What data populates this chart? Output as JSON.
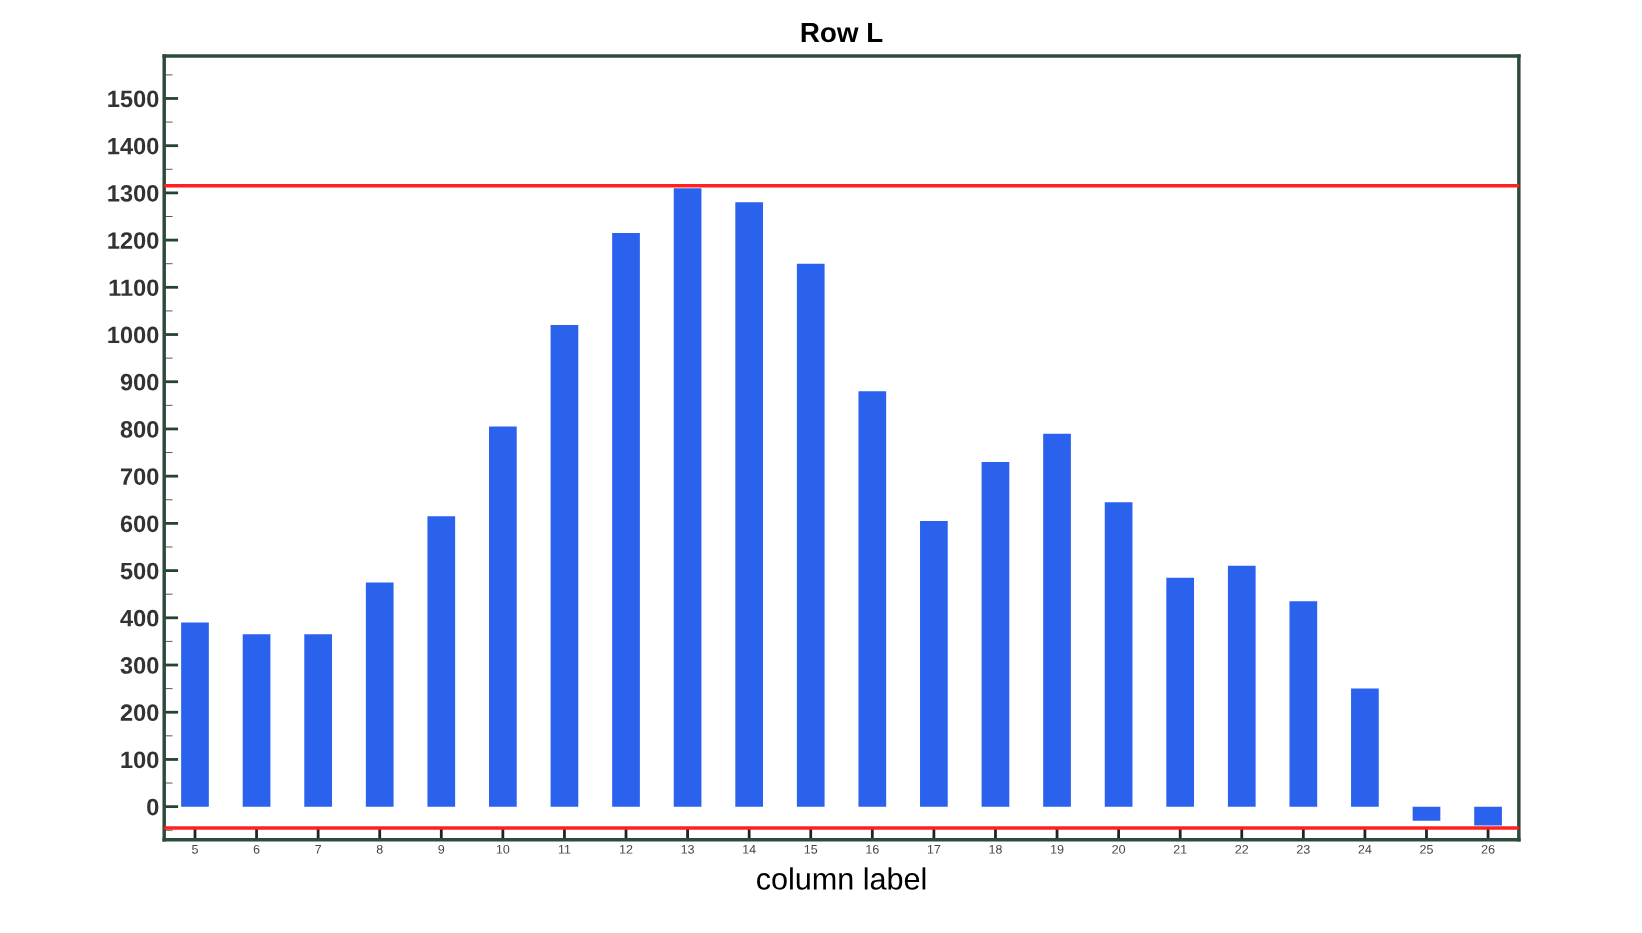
{
  "chart_data": {
    "type": "bar",
    "title": "Row L",
    "xlabel": "column label",
    "categories": [
      "5",
      "6",
      "7",
      "8",
      "9",
      "10",
      "11",
      "12",
      "13",
      "14",
      "15",
      "16",
      "17",
      "18",
      "19",
      "20",
      "21",
      "22",
      "23",
      "24",
      "25",
      "26"
    ],
    "values": [
      390,
      365,
      365,
      475,
      615,
      805,
      1020,
      1215,
      1310,
      1280,
      1150,
      880,
      605,
      730,
      790,
      645,
      485,
      510,
      435,
      250,
      -30,
      -40
    ],
    "color": "#2a62ee",
    "ylim": [
      -70,
      1590
    ],
    "yticks": [
      0,
      100,
      200,
      300,
      400,
      500,
      600,
      700,
      800,
      900,
      1000,
      1100,
      1200,
      1300,
      1400,
      1500
    ],
    "ref_lines": [
      {
        "axis": "y",
        "value": 1315,
        "color": "#ff2020"
      },
      {
        "axis": "y",
        "value": -45,
        "color": "#ff2020"
      }
    ],
    "grid": false
  }
}
